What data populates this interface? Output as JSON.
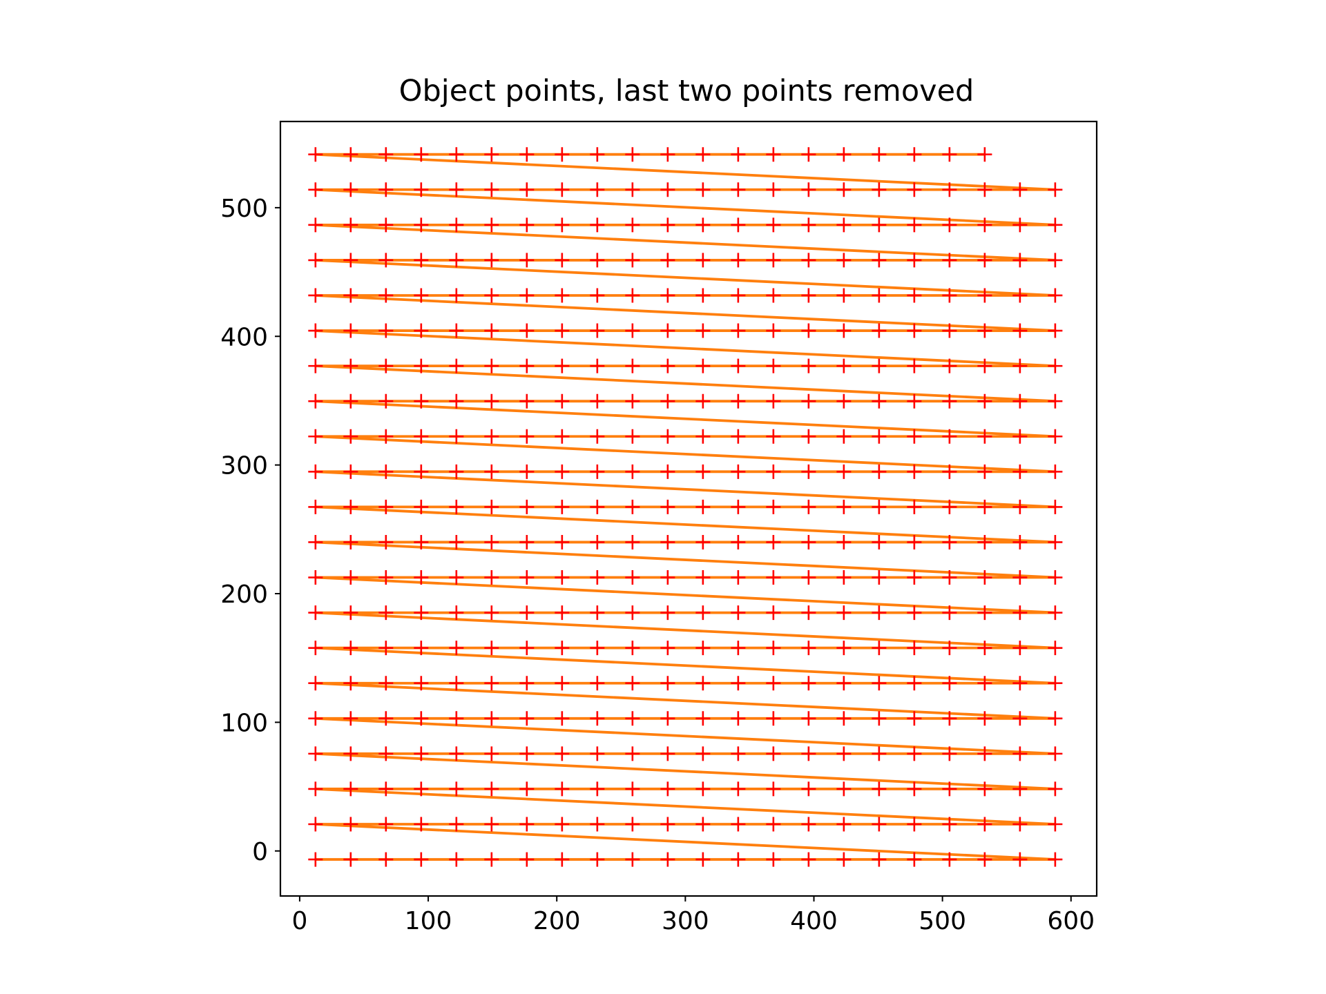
{
  "chart_data": {
    "type": "scatter",
    "title": "Object points, last two points removed",
    "xlabel": "",
    "ylabel": "",
    "xlim": [
      -15,
      620
    ],
    "ylim": [
      -35,
      567
    ],
    "x_ticks": [
      0,
      100,
      200,
      300,
      400,
      500,
      600
    ],
    "y_ticks": [
      0,
      100,
      200,
      300,
      400,
      500
    ],
    "grid": false,
    "legend": "none",
    "grid_columns": {
      "start": 12.3,
      "step": 27.4,
      "count": 22
    },
    "grid_rows": {
      "start": -6.6,
      "step": 27.4,
      "count": 21
    },
    "removed_points": 2,
    "series": [
      {
        "role": "path",
        "style": "line",
        "color": "#ff7f0e"
      },
      {
        "role": "points",
        "style": "plus-marker",
        "color": "#ff0000"
      }
    ]
  }
}
